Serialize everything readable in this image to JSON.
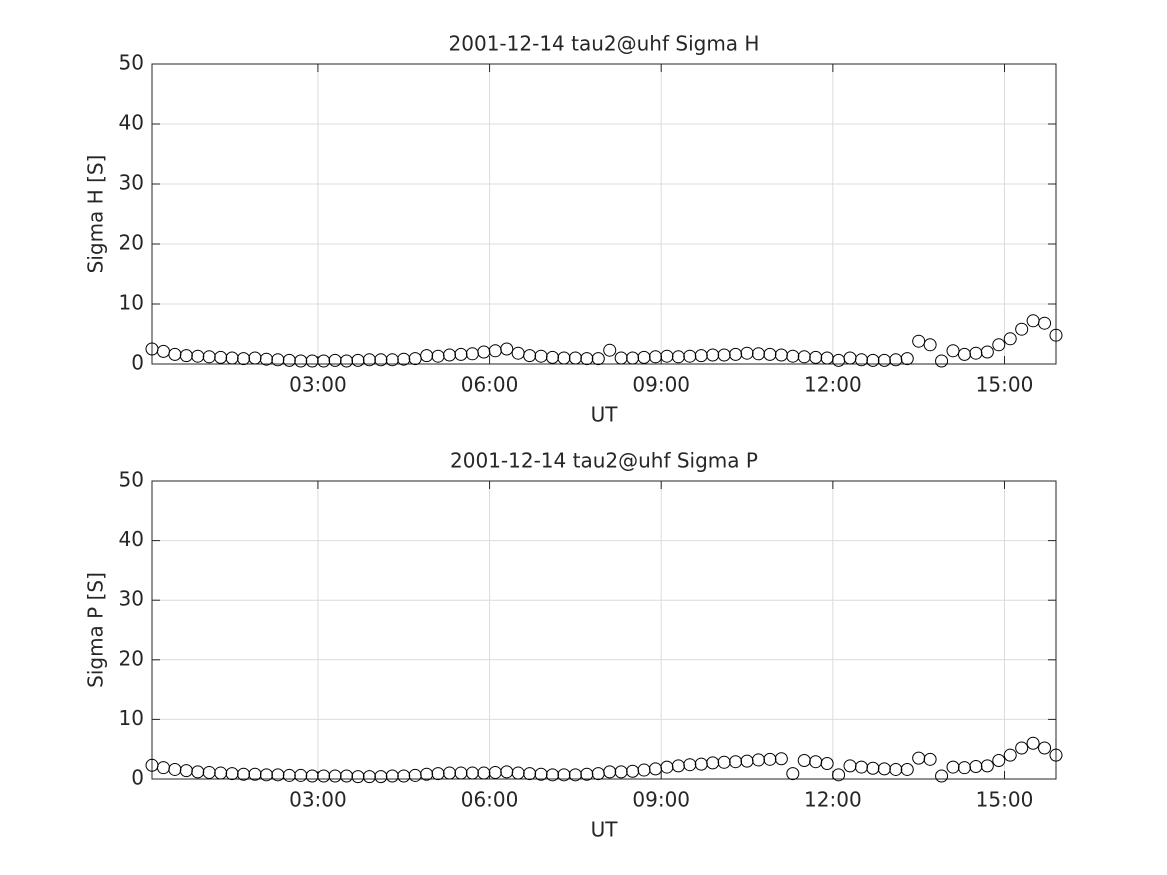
{
  "chart_data": [
    {
      "type": "scatter",
      "title": "2001-12-14  tau2@uhf Sigma H",
      "xlabel": "UT",
      "ylabel": "Sigma H [S]",
      "color": "#000000",
      "grid": true,
      "xlim": [
        0.1,
        15.9
      ],
      "ylim": [
        0,
        50
      ],
      "xticks": [
        {
          "value": 3,
          "label": "03:00"
        },
        {
          "value": 6,
          "label": "06:00"
        },
        {
          "value": 9,
          "label": "09:00"
        },
        {
          "value": 12,
          "label": "12:00"
        },
        {
          "value": 15,
          "label": "15:00"
        }
      ],
      "yticks": [
        0,
        10,
        20,
        30,
        40,
        50
      ],
      "x": [
        0.1,
        0.3,
        0.5,
        0.7,
        0.9,
        1.1,
        1.3,
        1.5,
        1.7,
        1.9,
        2.1,
        2.3,
        2.5,
        2.7,
        2.9,
        3.1,
        3.3,
        3.5,
        3.7,
        3.9,
        4.1,
        4.3,
        4.5,
        4.7,
        4.9,
        5.1,
        5.3,
        5.5,
        5.7,
        5.9,
        6.1,
        6.3,
        6.5,
        6.7,
        6.9,
        7.1,
        7.3,
        7.5,
        7.7,
        7.9,
        8.1,
        8.3,
        8.5,
        8.7,
        8.9,
        9.1,
        9.3,
        9.5,
        9.7,
        9.9,
        10.1,
        10.3,
        10.5,
        10.7,
        10.9,
        11.1,
        11.3,
        11.5,
        11.7,
        11.9,
        12.1,
        12.3,
        12.5,
        12.7,
        12.9,
        13.1,
        13.3,
        13.5,
        13.7,
        13.9,
        14.1,
        14.3,
        14.5,
        14.7,
        14.9,
        15.1,
        15.3,
        15.5,
        15.7,
        15.9
      ],
      "values": [
        2.5,
        2.1,
        1.6,
        1.4,
        1.3,
        1.2,
        1.1,
        1.0,
        0.9,
        1.0,
        0.8,
        0.7,
        0.6,
        0.5,
        0.5,
        0.5,
        0.6,
        0.5,
        0.6,
        0.7,
        0.7,
        0.7,
        0.8,
        0.9,
        1.4,
        1.3,
        1.5,
        1.6,
        1.7,
        2.0,
        2.2,
        2.5,
        1.8,
        1.4,
        1.3,
        1.1,
        1.0,
        1.0,
        0.9,
        0.9,
        2.3,
        1.0,
        1.0,
        1.1,
        1.2,
        1.3,
        1.2,
        1.3,
        1.4,
        1.5,
        1.5,
        1.6,
        1.8,
        1.7,
        1.6,
        1.5,
        1.3,
        1.2,
        1.1,
        1.0,
        0.6,
        1.0,
        0.7,
        0.6,
        0.6,
        0.7,
        0.9,
        3.8,
        3.2,
        0.5,
        2.2,
        1.6,
        1.8,
        2.0,
        3.2,
        4.2,
        5.8,
        7.2,
        6.8,
        4.8
      ]
    },
    {
      "type": "scatter",
      "title": "2001-12-14  tau2@uhf Sigma P",
      "xlabel": "UT",
      "ylabel": "Sigma P [S]",
      "color": "#000000",
      "grid": true,
      "xlim": [
        0.1,
        15.9
      ],
      "ylim": [
        0,
        50
      ],
      "xticks": [
        {
          "value": 3,
          "label": "03:00"
        },
        {
          "value": 6,
          "label": "06:00"
        },
        {
          "value": 9,
          "label": "09:00"
        },
        {
          "value": 12,
          "label": "12:00"
        },
        {
          "value": 15,
          "label": "15:00"
        }
      ],
      "yticks": [
        0,
        10,
        20,
        30,
        40,
        50
      ],
      "x": [
        0.1,
        0.3,
        0.5,
        0.7,
        0.9,
        1.1,
        1.3,
        1.5,
        1.7,
        1.9,
        2.1,
        2.3,
        2.5,
        2.7,
        2.9,
        3.1,
        3.3,
        3.5,
        3.7,
        3.9,
        4.1,
        4.3,
        4.5,
        4.7,
        4.9,
        5.1,
        5.3,
        5.5,
        5.7,
        5.9,
        6.1,
        6.3,
        6.5,
        6.7,
        6.9,
        7.1,
        7.3,
        7.5,
        7.7,
        7.9,
        8.1,
        8.3,
        8.5,
        8.7,
        8.9,
        9.1,
        9.3,
        9.5,
        9.7,
        9.9,
        10.1,
        10.3,
        10.5,
        10.7,
        10.9,
        11.1,
        11.3,
        11.5,
        11.7,
        11.9,
        12.1,
        12.3,
        12.5,
        12.7,
        12.9,
        13.1,
        13.3,
        13.5,
        13.7,
        13.9,
        14.1,
        14.3,
        14.5,
        14.7,
        14.9,
        15.1,
        15.3,
        15.5,
        15.7,
        15.9
      ],
      "values": [
        2.3,
        1.9,
        1.6,
        1.4,
        1.2,
        1.1,
        1.0,
        0.9,
        0.8,
        0.8,
        0.7,
        0.7,
        0.6,
        0.6,
        0.5,
        0.5,
        0.5,
        0.5,
        0.4,
        0.4,
        0.4,
        0.5,
        0.5,
        0.6,
        0.8,
        0.9,
        1.0,
        1.0,
        1.0,
        1.0,
        1.1,
        1.2,
        1.0,
        0.9,
        0.8,
        0.7,
        0.7,
        0.7,
        0.8,
        0.9,
        1.2,
        1.2,
        1.3,
        1.5,
        1.7,
        2.0,
        2.2,
        2.4,
        2.5,
        2.7,
        2.8,
        2.9,
        3.0,
        3.2,
        3.3,
        3.4,
        0.9,
        3.1,
        2.9,
        2.6,
        0.7,
        2.2,
        2.0,
        1.8,
        1.7,
        1.6,
        1.6,
        3.5,
        3.3,
        0.5,
        2.0,
        1.9,
        2.1,
        2.2,
        3.1,
        4.0,
        5.2,
        6.0,
        5.2,
        4.0
      ]
    }
  ]
}
